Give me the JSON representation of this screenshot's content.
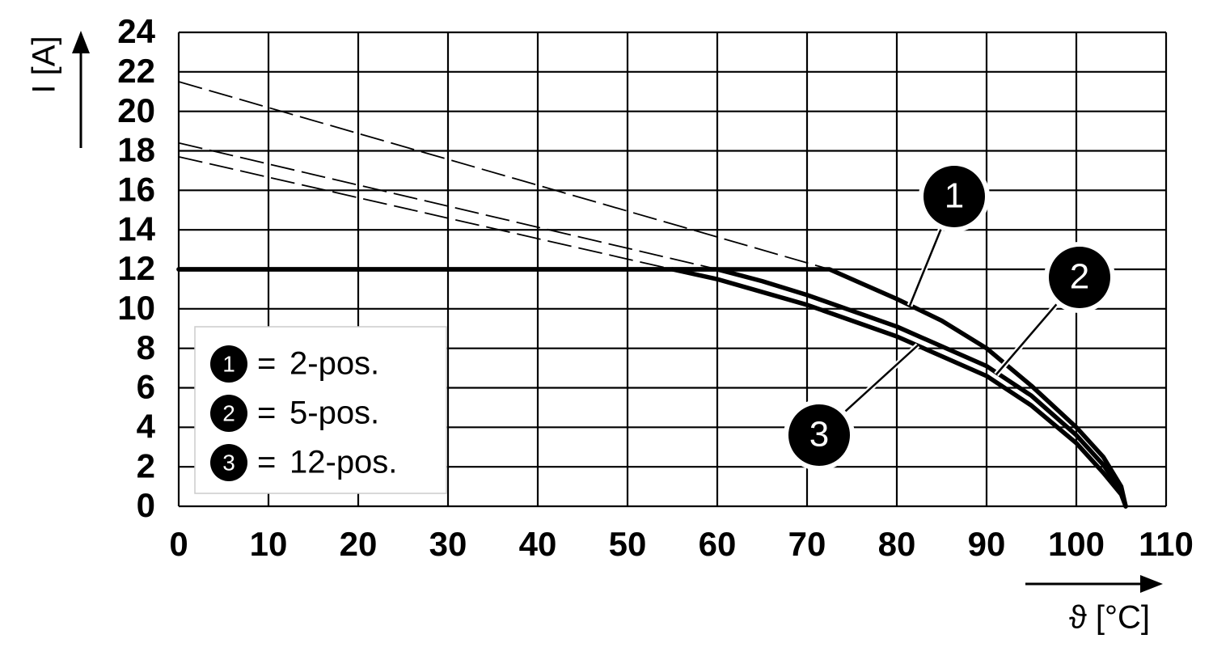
{
  "chart_data": {
    "type": "line",
    "xlabel": "ϑ [°C]",
    "ylabel": "I [A]",
    "xlim": [
      0,
      110
    ],
    "ylim": [
      0,
      24
    ],
    "xticks": [
      0,
      10,
      20,
      30,
      40,
      50,
      60,
      70,
      80,
      90,
      100,
      110
    ],
    "yticks": [
      0,
      2,
      4,
      6,
      8,
      10,
      12,
      14,
      16,
      18,
      20,
      22,
      24
    ],
    "grid": true,
    "legend_equals": "=",
    "series": [
      {
        "name": "2-pos.",
        "marker": "1",
        "color": "#000000",
        "x": [
          0,
          72.5,
          76,
          80,
          85,
          90,
          95,
          100,
          103,
          105,
          105.5
        ],
        "values": [
          12,
          12,
          11.3,
          10.5,
          9.4,
          8,
          6.1,
          4,
          2.5,
          1,
          0
        ],
        "extrapolation": {
          "x": [
            0,
            72.5
          ],
          "values": [
            21.5,
            12
          ]
        }
      },
      {
        "name": "5-pos.",
        "marker": "2",
        "color": "#000000",
        "x": [
          0,
          60,
          65,
          70,
          80,
          90,
          95,
          100,
          103,
          105,
          105.5
        ],
        "values": [
          12,
          12,
          11.4,
          10.7,
          9.1,
          7.1,
          5.6,
          3.6,
          2.1,
          0.8,
          0
        ],
        "extrapolation": {
          "x": [
            0,
            60
          ],
          "values": [
            18.4,
            12
          ]
        }
      },
      {
        "name": "12-pos.",
        "marker": "3",
        "color": "#000000",
        "x": [
          55,
          60,
          70,
          80,
          90,
          95,
          100,
          103,
          105,
          105.5
        ],
        "values": [
          12,
          11.5,
          10.2,
          8.6,
          6.6,
          5.1,
          3.2,
          1.7,
          0.6,
          0
        ],
        "extrapolation": {
          "x": [
            0,
            55
          ],
          "values": [
            17.7,
            12
          ]
        }
      }
    ]
  }
}
